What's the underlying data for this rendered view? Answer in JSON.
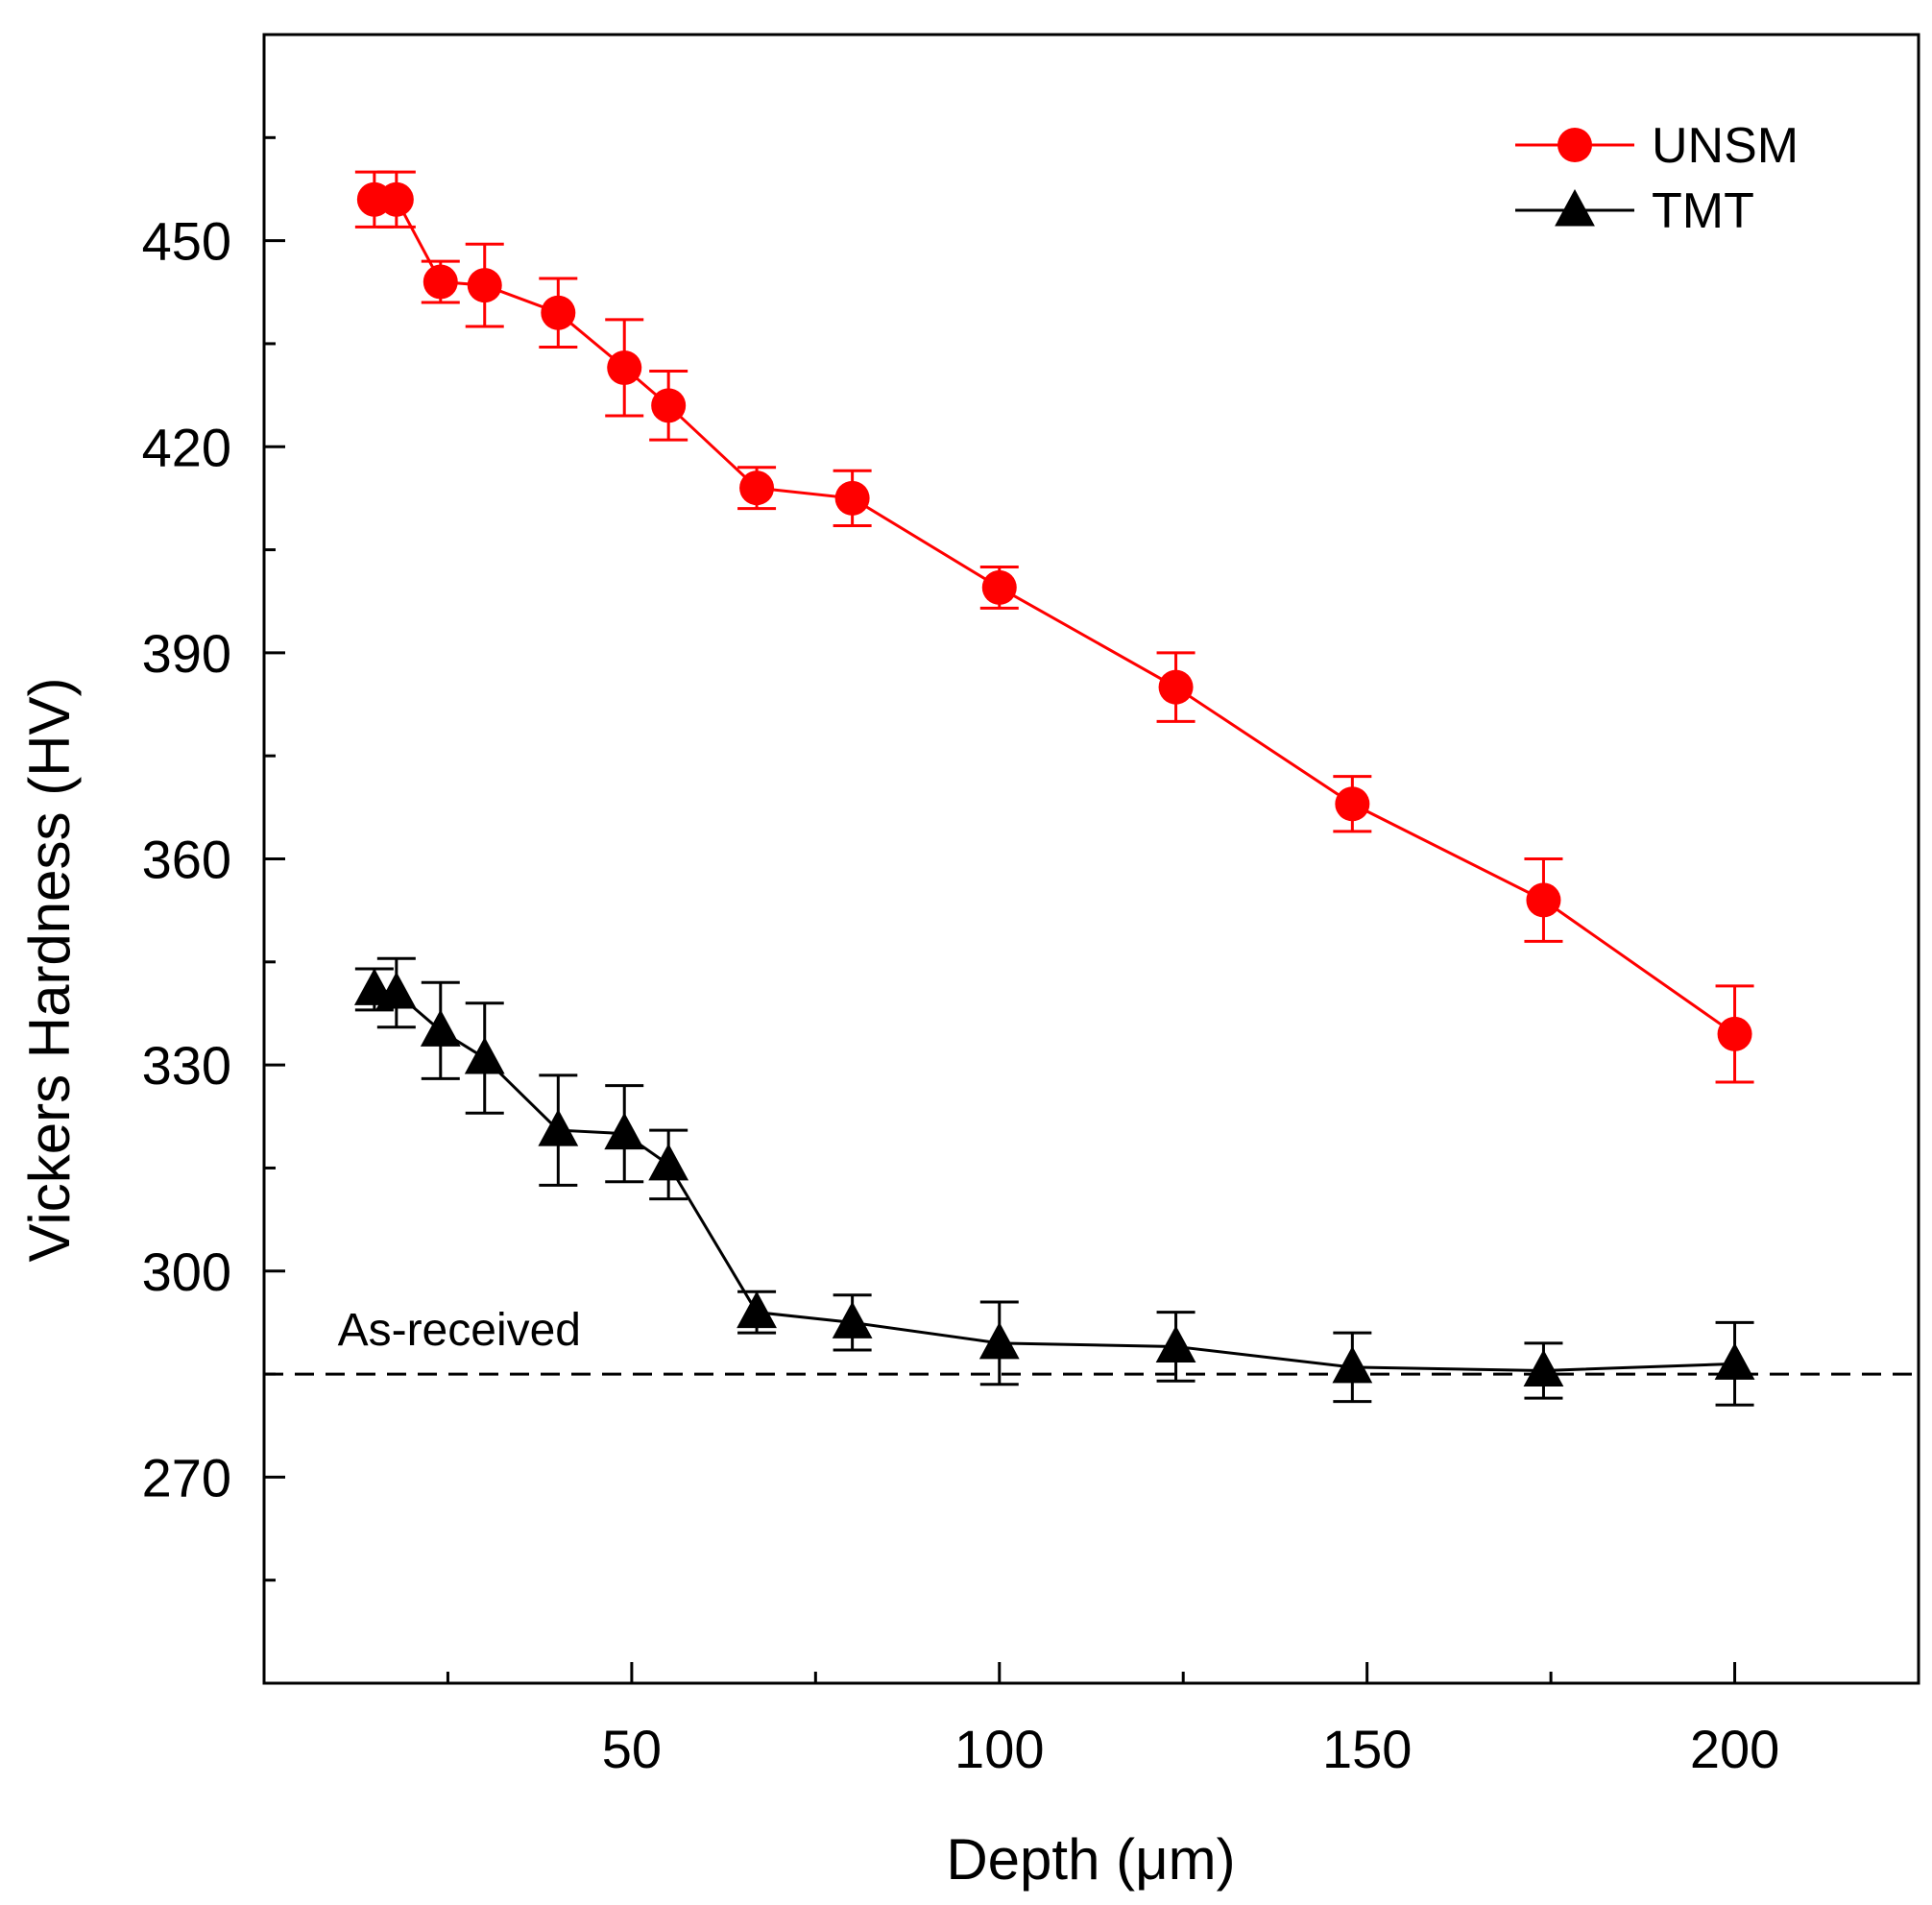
{
  "chart_data": {
    "type": "line",
    "xlabel": "Depth (μm)",
    "ylabel": "Vickers Hardness (HV)",
    "xlim": [
      0,
      225
    ],
    "ylim": [
      240,
      480
    ],
    "xticks": [
      50,
      100,
      150,
      200
    ],
    "yticks": [
      270,
      300,
      330,
      360,
      390,
      420,
      450
    ],
    "grid": false,
    "legend_position": "top-right",
    "series": [
      {
        "name": "UNSM",
        "color": "#ff0000",
        "marker": "circle",
        "x": [
          15,
          18,
          24,
          30,
          40,
          49,
          55,
          67,
          80,
          100,
          124,
          148,
          174,
          200
        ],
        "y": [
          456,
          456,
          444,
          443.5,
          439.5,
          431.5,
          426,
          414,
          412.5,
          399.5,
          385,
          368,
          354,
          334.5
        ],
        "err": [
          4,
          4,
          3,
          6,
          5,
          7,
          5,
          3,
          4,
          3,
          5,
          4,
          6,
          7
        ]
      },
      {
        "name": "TMT",
        "color": "#000000",
        "marker": "triangle",
        "x": [
          15,
          18,
          24,
          30,
          40,
          49,
          55,
          67,
          80,
          100,
          124,
          148,
          174,
          200
        ],
        "y": [
          341,
          340.5,
          335,
          331,
          320.5,
          320,
          315.5,
          294,
          292.5,
          289.5,
          289,
          286,
          285.5,
          286.5
        ],
        "err": [
          3,
          5,
          7,
          8,
          8,
          7,
          5,
          3,
          4,
          6,
          5,
          5,
          4,
          6
        ]
      }
    ],
    "reference_line": {
      "y": 285,
      "label": "As-received",
      "style": "dashed"
    }
  }
}
